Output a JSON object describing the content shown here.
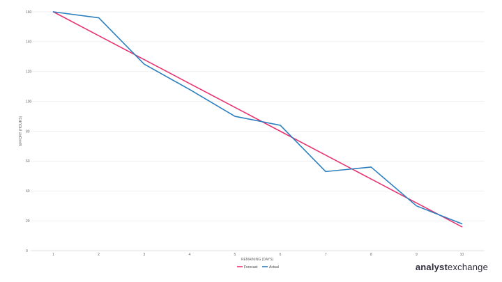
{
  "chart_data": {
    "type": "line",
    "title": "",
    "xlabel": "REMAINING (DAYS)",
    "ylabel": "EFFORT (HOURS)",
    "x": [
      1,
      2,
      3,
      4,
      5,
      6,
      7,
      8,
      9,
      10
    ],
    "xlim": [
      0.5,
      10.5
    ],
    "ylim": [
      0,
      160
    ],
    "yticks": [
      0,
      20,
      40,
      60,
      80,
      100,
      120,
      140,
      160
    ],
    "grid": true,
    "legend_position": "bottom",
    "series": [
      {
        "name": "Forecast",
        "color": "#e8336f",
        "values": [
          160,
          144,
          128,
          112,
          96,
          80,
          64,
          48,
          32,
          16
        ]
      },
      {
        "name": "Actual",
        "color": "#2b7fbf",
        "values": [
          160,
          156,
          125,
          108,
          90,
          84,
          53,
          56,
          30,
          18
        ]
      }
    ]
  },
  "brand": {
    "part1": "analyst",
    "part2": "exchange"
  }
}
